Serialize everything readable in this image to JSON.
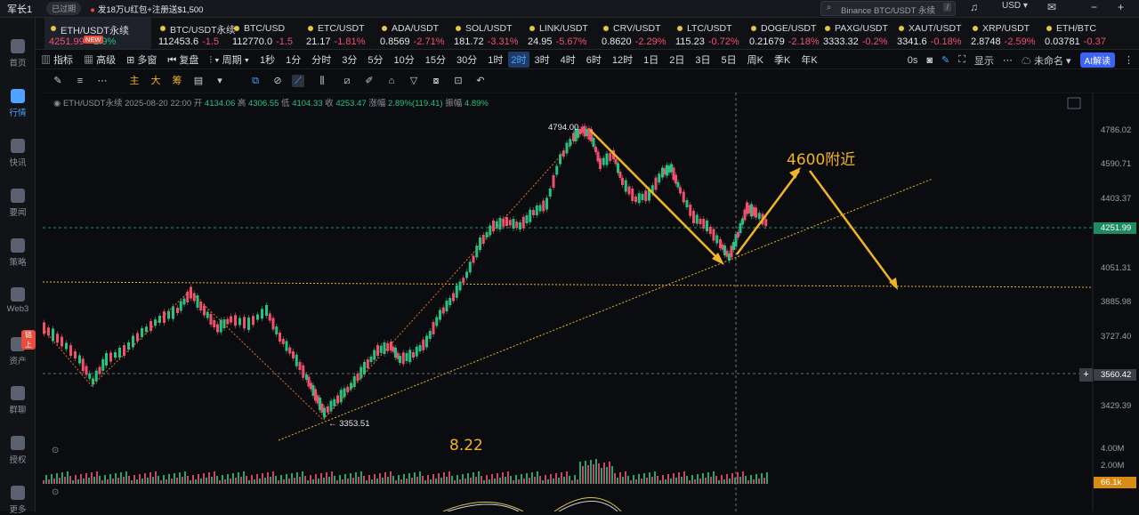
{
  "titlebar": {
    "user": "军长1",
    "status": "已过期",
    "promo": "发18万U红包+注册送$1,500",
    "search_placeholder": "Binance BTC/USDT 永续",
    "search_key": "/",
    "currency": "USD"
  },
  "sidebar": [
    {
      "label": "首页",
      "active": false
    },
    {
      "label": "行情",
      "active": true
    },
    {
      "label": "快讯",
      "active": false
    },
    {
      "label": "要闻",
      "active": false
    },
    {
      "label": "策略",
      "active": false
    },
    {
      "label": "Web3",
      "active": false
    },
    {
      "label": "资产",
      "active": false,
      "badge": "链上"
    },
    {
      "label": "群聊",
      "active": false
    },
    {
      "label": "授权",
      "active": false
    },
    {
      "label": "更多",
      "active": false
    }
  ],
  "tickers": [
    {
      "name": "ETH/USDT永续",
      "price": "4251.99",
      "change": "+2.9%",
      "dir": "up",
      "badge": "NEW"
    },
    {
      "name": "BTC/USDT永续",
      "price": "112453.6",
      "change": "-1.5",
      "dir": "dn"
    },
    {
      "name": "BTC/USD",
      "price": "112770.0",
      "change": "-1.5",
      "dir": "dn"
    },
    {
      "name": "ETC/USDT",
      "price": "21.17",
      "change": "-1.81%",
      "dir": "dn"
    },
    {
      "name": "ADA/USDT",
      "price": "0.8569",
      "change": "-2.71%",
      "dir": "dn"
    },
    {
      "name": "SOL/USDT",
      "price": "181.72",
      "change": "-3.31%",
      "dir": "dn"
    },
    {
      "name": "LINK/USDT",
      "price": "24.95",
      "change": "-5.67%",
      "dir": "dn"
    },
    {
      "name": "CRV/USDT",
      "price": "0.8620",
      "change": "-2.29%",
      "dir": "dn"
    },
    {
      "name": "LTC/USDT",
      "price": "115.23",
      "change": "-0.72%",
      "dir": "dn"
    },
    {
      "name": "DOGE/USDT",
      "price": "0.21679",
      "change": "-2.18%",
      "dir": "dn"
    },
    {
      "name": "PAXG/USDT",
      "price": "3333.32",
      "change": "-0.2%",
      "dir": "dn"
    },
    {
      "name": "XAUT/USDT",
      "price": "3341.6",
      "change": "-0.18%",
      "dir": "dn"
    },
    {
      "name": "XRP/USDT",
      "price": "2.8748",
      "change": "-2.59%",
      "dir": "dn"
    },
    {
      "name": "ETH/BTC",
      "price": "0.03781",
      "change": "-0.37",
      "dir": "dn"
    }
  ],
  "toolbar1": [
    "指标",
    "高级",
    "多窗",
    "复盘",
    "周期",
    "1秒",
    "1分",
    "分时",
    "3分",
    "5分",
    "10分",
    "15分",
    "30分",
    "1时",
    "2时",
    "3时",
    "4时",
    "6时",
    "12时",
    "1日",
    "2日",
    "3日",
    "5日",
    "周K",
    "季K",
    "年K"
  ],
  "toolbar1_selected": "2时",
  "toolbar1_right": {
    "delay": "0s",
    "display": "显示",
    "layout": "未命名",
    "ai": "AI解读"
  },
  "chart": {
    "symbol": "ETH/USDT永续",
    "date": "2025-08-20 22:00",
    "open_label": "开",
    "open": "4134.06",
    "high_label": "高",
    "high": "4306.55",
    "low_label": "低",
    "low": "4104.33",
    "close_label": "收",
    "close": "4253.47",
    "chg_label": "涨幅",
    "chg": "2.89%(119.41)",
    "amp_label": "振幅",
    "amp": "4.89%",
    "axis_labels": [
      "4786.02",
      "4590.71",
      "4403.37",
      "4051.31",
      "3885.98",
      "3727.40",
      "3429.39"
    ],
    "current_price": "4251.99",
    "crosshair_price": "3560.42",
    "high_marker": "4794.00",
    "low_marker": "3353.51",
    "annotation_target": "4600附近",
    "annotation_date": "8.22",
    "volume_labels": [
      "4.00M",
      "2.00M"
    ],
    "volume_tag": "66.1k"
  }
}
